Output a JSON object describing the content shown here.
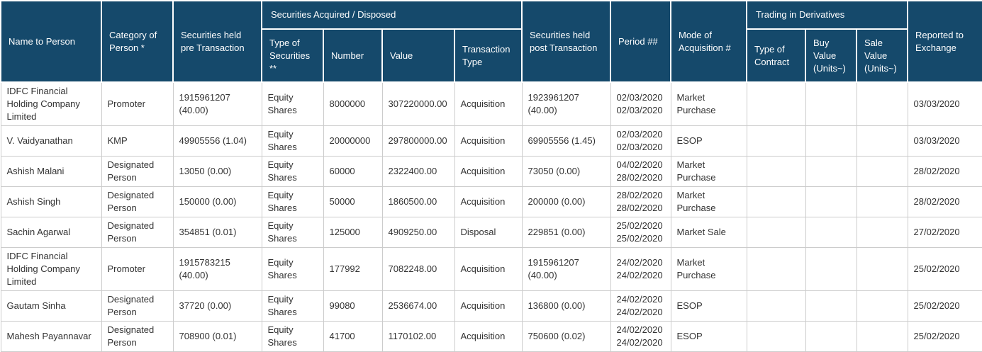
{
  "table": {
    "group_headers": {
      "securities_acquired_disposed": "Securities Acquired / Disposed",
      "trading_in_derivatives": "Trading in Derivatives"
    },
    "columns": {
      "name": "Name to Person",
      "category": "Category of Person *",
      "pre": "Securities held pre Transaction",
      "sec_type": "Type of Securities **",
      "number": "Number",
      "value": "Value",
      "txn_type": "Transaction Type",
      "post": "Securities held post Transaction",
      "period": "Period ##",
      "mode": "Mode of Acquisition #",
      "contract": "Type of Contract",
      "buy": "Buy Value (Units~)",
      "sale": "Sale Value (Units~)",
      "reported": "Reported to Exchange"
    },
    "rows": [
      {
        "name": "IDFC Financial Holding Company Limited",
        "category": "Promoter",
        "pre": "1915961207 (40.00)",
        "sec_type": "Equity Shares",
        "number": "8000000",
        "value": "307220000.00",
        "txn_type": "Acquisition",
        "post": "1923961207 (40.00)",
        "period_from": "02/03/2020",
        "period_to": "02/03/2020",
        "mode": "Market Purchase",
        "contract": "",
        "buy": "",
        "sale": "",
        "reported": "03/03/2020"
      },
      {
        "name": "V. Vaidyanathan",
        "category": "KMP",
        "pre": "49905556 (1.04)",
        "sec_type": "Equity Shares",
        "number": "20000000",
        "value": "297800000.00",
        "txn_type": "Acquisition",
        "post": "69905556 (1.45)",
        "period_from": "02/03/2020",
        "period_to": "02/03/2020",
        "mode": "ESOP",
        "contract": "",
        "buy": "",
        "sale": "",
        "reported": "03/03/2020"
      },
      {
        "name": "Ashish Malani",
        "category": "Designated Person",
        "pre": "13050 (0.00)",
        "sec_type": "Equity Shares",
        "number": "60000",
        "value": "2322400.00",
        "txn_type": "Acquisition",
        "post": "73050 (0.00)",
        "period_from": "04/02/2020",
        "period_to": "28/02/2020",
        "mode": "Market Purchase",
        "contract": "",
        "buy": "",
        "sale": "",
        "reported": "28/02/2020"
      },
      {
        "name": "Ashish Singh",
        "category": "Designated Person",
        "pre": "150000 (0.00)",
        "sec_type": "Equity Shares",
        "number": "50000",
        "value": "1860500.00",
        "txn_type": "Acquisition",
        "post": "200000 (0.00)",
        "period_from": "28/02/2020",
        "period_to": "28/02/2020",
        "mode": "Market Purchase",
        "contract": "",
        "buy": "",
        "sale": "",
        "reported": "28/02/2020"
      },
      {
        "name": "Sachin Agarwal",
        "category": "Designated Person",
        "pre": "354851 (0.01)",
        "sec_type": "Equity Shares",
        "number": "125000",
        "value": "4909250.00",
        "txn_type": "Disposal",
        "post": "229851 (0.00)",
        "period_from": "25/02/2020",
        "period_to": "25/02/2020",
        "mode": "Market Sale",
        "contract": "",
        "buy": "",
        "sale": "",
        "reported": "27/02/2020"
      },
      {
        "name": "IDFC Financial Holding Company Limited",
        "category": "Promoter",
        "pre": "1915783215 (40.00)",
        "sec_type": "Equity Shares",
        "number": "177992",
        "value": "7082248.00",
        "txn_type": "Acquisition",
        "post": "1915961207 (40.00)",
        "period_from": "24/02/2020",
        "period_to": "24/02/2020",
        "mode": "Market Purchase",
        "contract": "",
        "buy": "",
        "sale": "",
        "reported": "25/02/2020"
      },
      {
        "name": "Gautam Sinha",
        "category": "Designated Person",
        "pre": "37720 (0.00)",
        "sec_type": "Equity Shares",
        "number": "99080",
        "value": "2536674.00",
        "txn_type": "Acquisition",
        "post": "136800 (0.00)",
        "period_from": "24/02/2020",
        "period_to": "24/02/2020",
        "mode": "ESOP",
        "contract": "",
        "buy": "",
        "sale": "",
        "reported": "25/02/2020"
      },
      {
        "name": "Mahesh Payannavar",
        "category": "Designated Person",
        "pre": "708900 (0.01)",
        "sec_type": "Equity Shares",
        "number": "41700",
        "value": "1170102.00",
        "txn_type": "Acquisition",
        "post": "750600 (0.02)",
        "period_from": "24/02/2020",
        "period_to": "24/02/2020",
        "mode": "ESOP",
        "contract": "",
        "buy": "",
        "sale": "",
        "reported": "25/02/2020"
      }
    ]
  }
}
